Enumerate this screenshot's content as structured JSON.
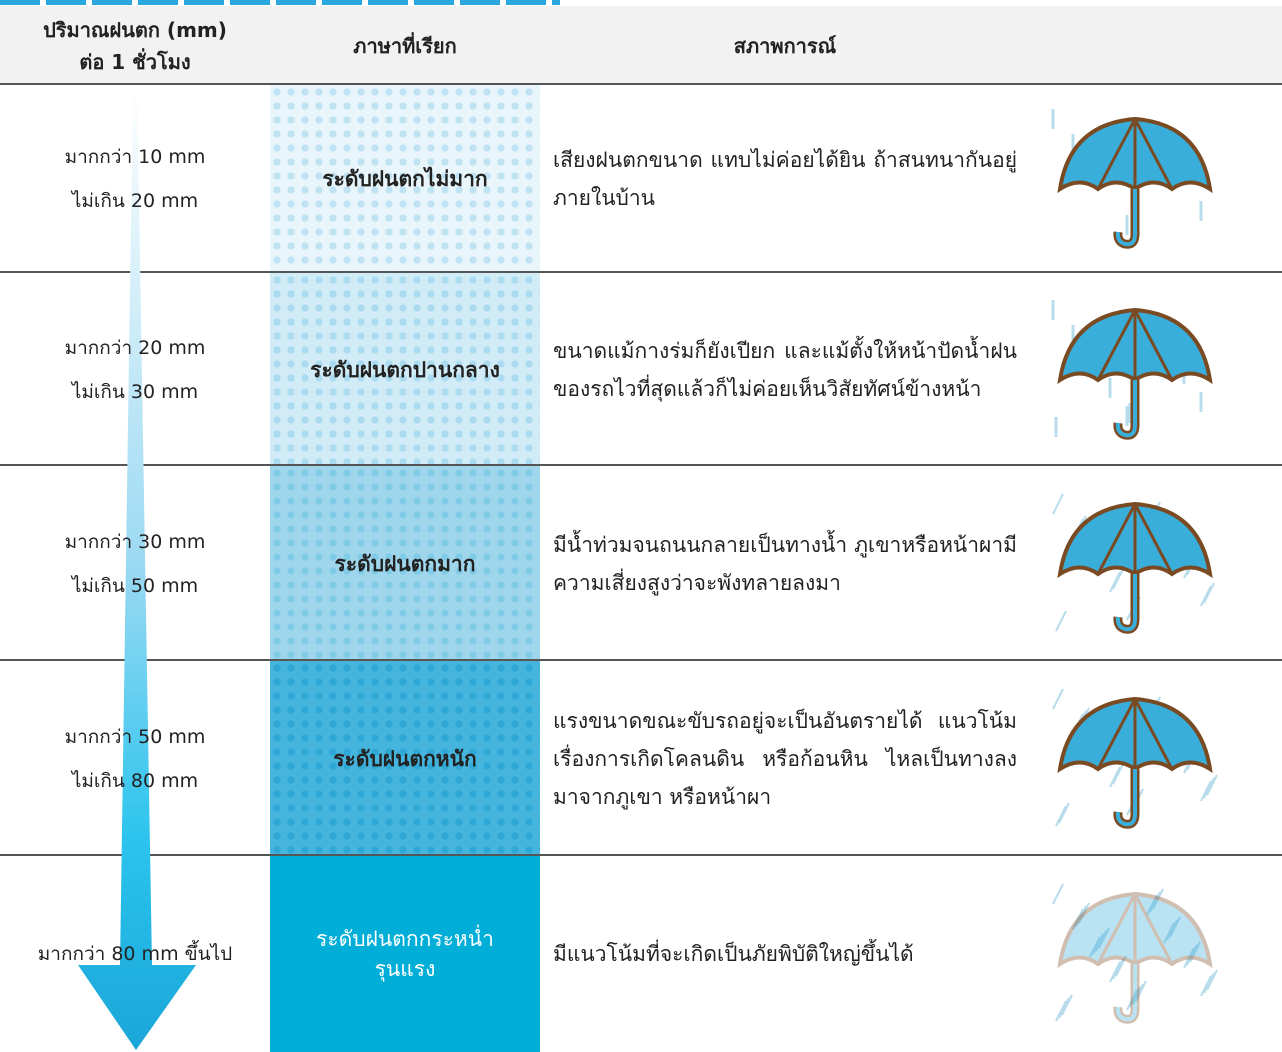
{
  "header": {
    "amount": [
      "ปริมาณฝนตก (mm)",
      "ต่อ 1 ชั่วโมง"
    ],
    "term": "ภาษาที่เรียก",
    "situation": "สภาพการณ์"
  },
  "rows": [
    {
      "amount": [
        "มากกว่า 10 mm",
        "ไม่เกิน 20 mm"
      ],
      "term": [
        "ระดับฝนตกไม่มาก"
      ],
      "situation": "เสียงฝนตกขนาด แทบไม่ค่อยได้ยิน ถ้าสนทนากันอยู่ภายในบ้าน"
    },
    {
      "amount": [
        "มากกว่า 20 mm",
        "ไม่เกิน 30 mm"
      ],
      "term": [
        "ระดับฝนตกปานกลาง"
      ],
      "situation": "ขนาดแม้กางร่มก็ยังเปียก และแม้ตั้งให้หน้าปัดน้ำฝนของรถไวที่สุดแล้วก็ไม่ค่อยเห็นวิสัยทัศน์ข้างหน้า"
    },
    {
      "amount": [
        "มากกว่า 30 mm",
        "ไม่เกิน 50 mm"
      ],
      "term": [
        "ระดับฝนตกมาก"
      ],
      "situation": "มีน้ำท่วมจนถนนกลายเป็นทางน้ำ ภูเขาหรือหน้าผามีความเสี่ยงสูงว่าจะพังทลายลงมา"
    },
    {
      "amount": [
        "มากกว่า 50 mm",
        "ไม่เกิน 80 mm"
      ],
      "term": [
        "ระดับฝนตกหนัก"
      ],
      "situation": "แรงขนาดขณะขับรถอยู่จะเป็นอันตรายได้ แนวโน้มเรื่องการเกิดโคลนดิน หรือก้อนหิน ไหลเป็นทางลงมาจากภูเขา หรือหน้าผา"
    },
    {
      "amount": [
        "มากกว่า 80 mm ขึ้นไป"
      ],
      "term": [
        "ระดับฝนตกกระหน่ำ",
        "รุนแรง"
      ],
      "situation": "มีแนวโน้มที่จะเกิดเป็นภัยพิบัติใหญ่ขึ้นได้"
    }
  ]
}
